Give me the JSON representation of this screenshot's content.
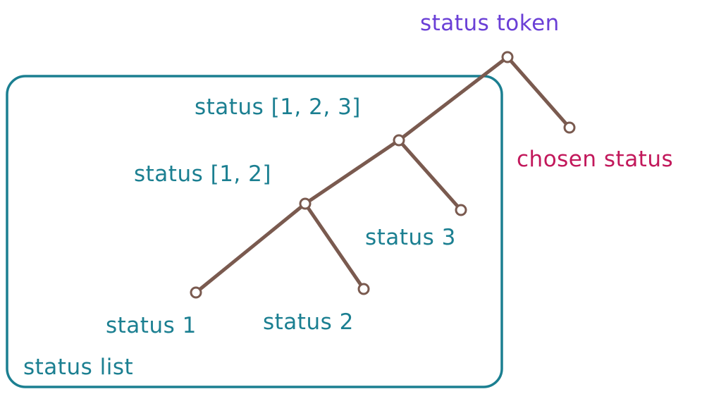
{
  "colors": {
    "tree": "#7a5a4f",
    "list": "#1b7f91",
    "token": "#6a3fd6",
    "chosen": "#c2185b"
  },
  "labels": {
    "status_token": "status token",
    "chosen_status": "chosen status",
    "status_123": "status [1, 2, 3]",
    "status_12": "status [1, 2]",
    "status_3": "status 3",
    "status_1": "status 1",
    "status_2": "status 2",
    "status_list": "status list"
  }
}
